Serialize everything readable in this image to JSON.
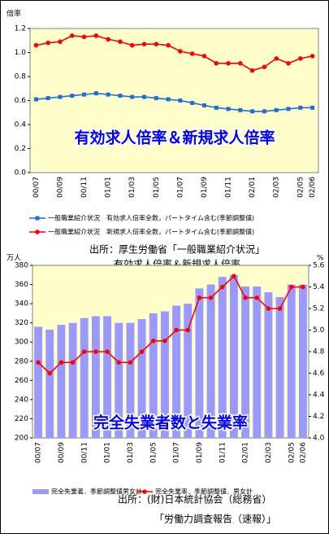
{
  "chart_data": [
    {
      "type": "line",
      "ylabel": "倍率",
      "annotation": "有効求人倍率＆新規求人倍率",
      "categories": [
        "00/07",
        null,
        "00/09",
        null,
        "00/11",
        null,
        "01/01",
        null,
        "01/03",
        null,
        "01/05",
        null,
        "01/07",
        null,
        "01/09",
        null,
        "01/11",
        null,
        "02/01",
        null,
        "02/03",
        null,
        "02/05",
        "02/06"
      ],
      "ylim": [
        0,
        1.2
      ],
      "yticks": [
        {
          "value": 0,
          "label": "0.0"
        },
        0.2,
        0.4,
        0.6,
        0.8,
        {
          "value": 1,
          "label": "1.0"
        },
        1.2
      ],
      "series": [
        {
          "name": "一般職業紹介状況　有効求人倍率全数，パートタイム含む(季節調整値)",
          "color": "#1f6fd0",
          "marker": "square",
          "values": [
            0.61,
            0.62,
            0.63,
            0.64,
            0.65,
            0.66,
            0.65,
            0.64,
            0.63,
            0.63,
            0.62,
            0.61,
            0.6,
            0.58,
            0.56,
            0.54,
            0.53,
            0.52,
            0.51,
            0.51,
            0.52,
            0.53,
            0.54,
            0.54
          ]
        },
        {
          "name": "一般職業紹介状況　新規求人倍率全数，パートタイム含む(季節調整値)",
          "color": "#ff0000",
          "marker": "circle",
          "values": [
            1.06,
            1.08,
            1.09,
            1.14,
            1.13,
            1.14,
            1.11,
            1.09,
            1.06,
            1.07,
            1.07,
            1.06,
            1.01,
            0.99,
            0.97,
            0.91,
            0.91,
            0.91,
            0.85,
            0.88,
            0.95,
            0.91,
            0.95,
            0.97
          ]
        }
      ],
      "source": [
        "出所：厚生労働省「一般職業紹介状況」",
        "有効求人倍率＆新規求人倍率"
      ]
    },
    {
      "type": "combo",
      "ylabel": "万人",
      "y2label": "%",
      "annotation": "完全失業者数と失業率",
      "categories": [
        "00/07",
        null,
        "00/09",
        null,
        "00/11",
        null,
        "01/01",
        null,
        "01/03",
        null,
        "01/05",
        null,
        "01/07",
        null,
        "01/09",
        null,
        "01/11",
        null,
        "02/01",
        null,
        "02/03",
        null,
        "02/05",
        "02/06"
      ],
      "ylim": [
        200,
        380
      ],
      "yticks": [
        200,
        220,
        240,
        260,
        280,
        300,
        320,
        340,
        360,
        380
      ],
      "y2lim": [
        4,
        5.6
      ],
      "y2ticks": [
        {
          "value": 4,
          "label": "4.0"
        },
        4.2,
        4.4,
        4.6,
        4.8,
        {
          "value": 5,
          "label": "5.0"
        },
        5.2,
        5.4,
        5.6
      ],
      "series": [
        {
          "name": "完全失業者．季節調整値男女計",
          "color": "#9999ff",
          "values": [
            316,
            313,
            318,
            320,
            325,
            327,
            327,
            320,
            320,
            324,
            330,
            332,
            338,
            340,
            356,
            360,
            368,
            370,
            358,
            358,
            352,
            347,
            360,
            360
          ]
        },
        {
          "name": "完全失業率．季節調整値．男女計",
          "color": "#ff0000",
          "axis": "y2",
          "marker": "circle",
          "values": [
            4.7,
            4.6,
            4.7,
            4.7,
            4.8,
            4.8,
            4.8,
            4.7,
            4.7,
            4.8,
            4.9,
            4.9,
            5.0,
            5.0,
            5.3,
            5.3,
            5.4,
            5.5,
            5.3,
            5.3,
            5.2,
            5.2,
            5.4,
            5.4
          ]
        }
      ],
      "source": [
        "出所：(財)日本統計協会（総務省）",
        "「労働力調査報告（速報）」"
      ]
    }
  ]
}
